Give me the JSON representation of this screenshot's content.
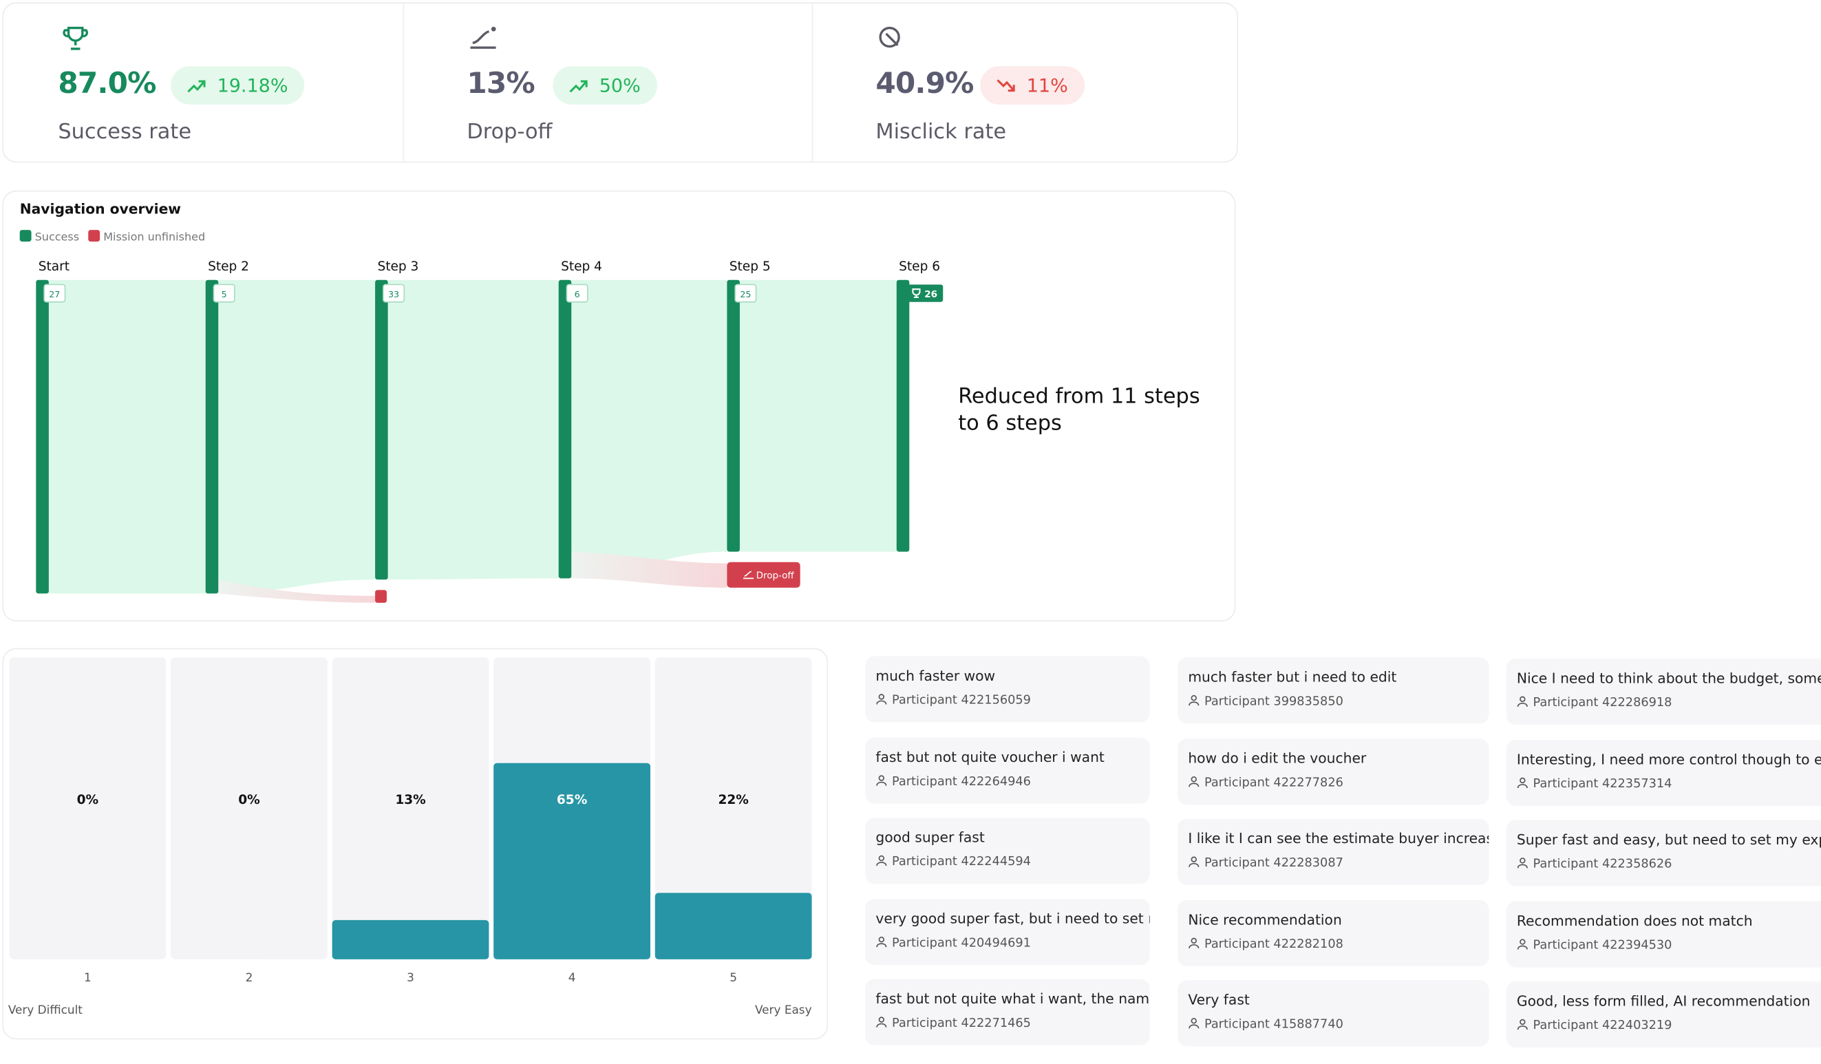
{
  "kpis": [
    {
      "value": "87.0%",
      "change": "19.18%",
      "label": "Success rate",
      "trend": "up"
    },
    {
      "value": "13%",
      "change": "50%",
      "label": "Drop-off",
      "trend": "up"
    },
    {
      "value": "40.9%",
      "change": "11%",
      "label": "Misclick rate",
      "trend": "down"
    }
  ],
  "navigation": {
    "title": "Navigation overview",
    "legend": [
      "Success",
      "Mission unfinished"
    ],
    "steps": [
      {
        "label": "Start",
        "count": 27
      },
      {
        "label": "Step 2",
        "count": 5
      },
      {
        "label": "Step 3",
        "count": 33
      },
      {
        "label": "Step 4",
        "count": 6
      },
      {
        "label": "Step 5",
        "count": 25
      },
      {
        "label": "Step 6",
        "count": 26
      }
    ],
    "dropoff_label": "Drop-off",
    "note": "Reduced from 11 steps to 6 steps"
  },
  "chart_data": {
    "type": "bar",
    "categories": [
      "1",
      "2",
      "3",
      "4",
      "5"
    ],
    "values": [
      0,
      0,
      13,
      65,
      22
    ],
    "value_labels": [
      "0%",
      "0%",
      "13%",
      "65%",
      "22%"
    ],
    "ylim": [
      0,
      100
    ],
    "color": "#2795a5",
    "xlabel_left": "Very Difficult",
    "xlabel_right": "Very Easy"
  },
  "comments": [
    [
      {
        "text": "much faster wow",
        "participant": "Participant 422156059"
      },
      {
        "text": "fast but not quite voucher i want",
        "participant": "Participant 422264946"
      },
      {
        "text": "good super fast",
        "participant": "Participant 422244594"
      },
      {
        "text": "very good super fast, but i need to set my",
        "participant": "Participant 420494691"
      },
      {
        "text": "fast but not quite what i want, the name c",
        "participant": "Participant 422271465"
      }
    ],
    [
      {
        "text": "much faster but i need to edit",
        "participant": "Participant 399835850"
      },
      {
        "text": "how do i edit the voucher",
        "participant": "Participant 422277826"
      },
      {
        "text": "I like it I can see the estimate buyer increase",
        "participant": "Participant 422283087"
      },
      {
        "text": "Nice recommendation",
        "participant": "Participant 422282108"
      },
      {
        "text": "Very fast",
        "participant": "Participant 415887740"
      }
    ],
    [
      {
        "text": "Nice I need to think about the budget, sometin",
        "participant": "Participant 422286918"
      },
      {
        "text": "Interesting, I need more control though to edi",
        "participant": "Participant 422357314"
      },
      {
        "text": "Super fast and easy, but need to set my expens",
        "participant": "Participant 422358626"
      },
      {
        "text": "Recommendation does not match",
        "participant": "Participant 422394530"
      },
      {
        "text": "Good, less form filled, AI recommendation",
        "participant": "Participant 422403219"
      }
    ]
  ]
}
